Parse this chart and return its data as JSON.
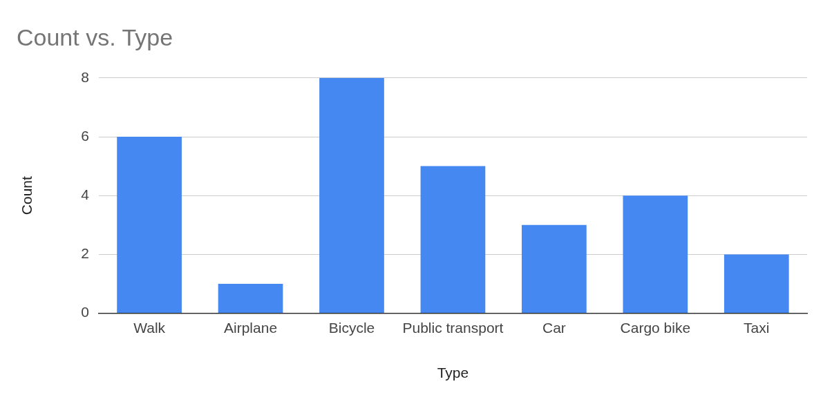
{
  "chart_data": {
    "type": "bar",
    "title": "Count vs. Type",
    "xlabel": "Type",
    "ylabel": "Count",
    "categories": [
      "Walk",
      "Airplane",
      "Bicycle",
      "Public transport",
      "Car",
      "Cargo bike",
      "Taxi"
    ],
    "values": [
      6,
      1,
      8,
      5,
      3,
      4,
      2
    ],
    "color": "#4688f1",
    "ylim": [
      0,
      8
    ],
    "yticks": [
      0,
      2,
      4,
      6,
      8
    ],
    "grid": "y"
  }
}
